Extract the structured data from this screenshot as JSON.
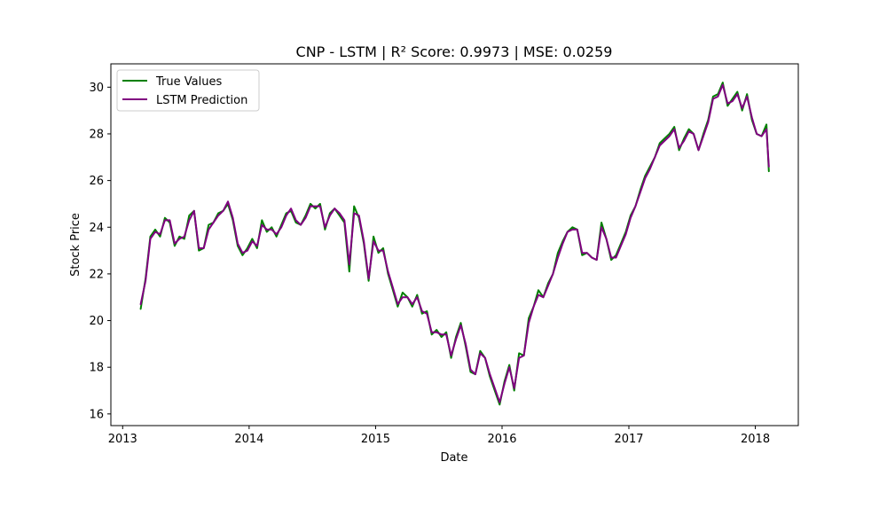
{
  "chart_data": {
    "type": "line",
    "title": "CNP - LSTM | R² Score: 0.9973 | MSE: 0.0259",
    "xlabel": "Date",
    "ylabel": "Stock Price",
    "xlim": [
      "2012-11-28",
      "2018-05-05"
    ],
    "ylim": [
      15.5,
      31.0
    ],
    "x_ticks": [
      "2013-01-01",
      "2014-01-01",
      "2015-01-01",
      "2016-01-01",
      "2017-01-01",
      "2018-01-01"
    ],
    "x_tick_labels": [
      "2013",
      "2014",
      "2015",
      "2016",
      "2017",
      "2018"
    ],
    "y_ticks": [
      16,
      18,
      20,
      22,
      24,
      26,
      28,
      30
    ],
    "y_tick_labels": [
      "16",
      "18",
      "20",
      "22",
      "24",
      "26",
      "28",
      "30"
    ],
    "grid": false,
    "legend_position": "upper-left",
    "x": [
      "2013-02-22",
      "2013-03-08",
      "2013-03-22",
      "2013-04-05",
      "2013-04-19",
      "2013-05-03",
      "2013-05-17",
      "2013-05-31",
      "2013-06-14",
      "2013-06-28",
      "2013-07-12",
      "2013-07-26",
      "2013-08-09",
      "2013-08-23",
      "2013-09-06",
      "2013-09-20",
      "2013-10-04",
      "2013-10-18",
      "2013-11-01",
      "2013-11-15",
      "2013-11-29",
      "2013-12-13",
      "2013-12-27",
      "2014-01-10",
      "2014-01-24",
      "2014-02-07",
      "2014-02-21",
      "2014-03-07",
      "2014-03-21",
      "2014-04-04",
      "2014-04-18",
      "2014-05-02",
      "2014-05-16",
      "2014-05-30",
      "2014-06-13",
      "2014-06-27",
      "2014-07-11",
      "2014-07-25",
      "2014-08-08",
      "2014-08-22",
      "2014-09-05",
      "2014-09-19",
      "2014-10-03",
      "2014-10-17",
      "2014-10-31",
      "2014-11-14",
      "2014-11-28",
      "2014-12-12",
      "2014-12-26",
      "2015-01-09",
      "2015-01-23",
      "2015-02-06",
      "2015-02-20",
      "2015-03-06",
      "2015-03-20",
      "2015-04-03",
      "2015-04-17",
      "2015-05-01",
      "2015-05-15",
      "2015-05-29",
      "2015-06-12",
      "2015-06-26",
      "2015-07-10",
      "2015-07-24",
      "2015-08-07",
      "2015-08-21",
      "2015-09-04",
      "2015-09-18",
      "2015-10-02",
      "2015-10-16",
      "2015-10-30",
      "2015-11-13",
      "2015-11-27",
      "2015-12-11",
      "2015-12-25",
      "2016-01-08",
      "2016-01-22",
      "2016-02-05",
      "2016-02-19",
      "2016-03-04",
      "2016-03-18",
      "2016-04-01",
      "2016-04-15",
      "2016-04-29",
      "2016-05-13",
      "2016-05-27",
      "2016-06-10",
      "2016-06-24",
      "2016-07-08",
      "2016-07-22",
      "2016-08-05",
      "2016-08-19",
      "2016-09-02",
      "2016-09-16",
      "2016-09-30",
      "2016-10-14",
      "2016-10-28",
      "2016-11-11",
      "2016-11-25",
      "2016-12-09",
      "2016-12-23",
      "2017-01-06",
      "2017-01-20",
      "2017-02-03",
      "2017-02-17",
      "2017-03-03",
      "2017-03-17",
      "2017-03-31",
      "2017-04-14",
      "2017-04-28",
      "2017-05-12",
      "2017-05-26",
      "2017-06-09",
      "2017-06-23",
      "2017-07-07",
      "2017-07-21",
      "2017-08-04",
      "2017-08-18",
      "2017-09-01",
      "2017-09-15",
      "2017-09-29",
      "2017-10-13",
      "2017-10-27",
      "2017-11-10",
      "2017-11-24",
      "2017-12-08",
      "2017-12-22",
      "2018-01-05",
      "2018-01-19",
      "2018-02-02",
      "2018-02-09"
    ],
    "series": [
      {
        "name": "True Values",
        "color": "#008000",
        "values": [
          20.5,
          21.8,
          23.6,
          23.9,
          23.6,
          24.4,
          24.2,
          23.2,
          23.6,
          23.5,
          24.5,
          24.7,
          23.0,
          23.1,
          24.1,
          24.2,
          24.6,
          24.7,
          25.0,
          24.3,
          23.2,
          22.8,
          23.1,
          23.5,
          23.1,
          24.3,
          23.8,
          24.0,
          23.6,
          24.1,
          24.6,
          24.7,
          24.2,
          24.1,
          24.5,
          25.0,
          24.8,
          25.0,
          23.9,
          24.6,
          24.8,
          24.5,
          24.2,
          22.1,
          24.9,
          24.4,
          23.3,
          21.7,
          23.6,
          22.9,
          23.1,
          22.0,
          21.3,
          20.6,
          21.2,
          21.0,
          20.6,
          21.1,
          20.3,
          20.4,
          19.4,
          19.6,
          19.3,
          19.5,
          18.4,
          19.3,
          19.9,
          18.9,
          17.8,
          17.7,
          18.7,
          18.4,
          17.6,
          17.0,
          16.4,
          17.4,
          18.1,
          17.0,
          18.6,
          18.5,
          20.1,
          20.6,
          21.3,
          21.0,
          21.6,
          22.0,
          22.9,
          23.4,
          23.8,
          24.0,
          23.9,
          22.8,
          22.9,
          22.7,
          22.6,
          24.2,
          23.5,
          22.6,
          22.8,
          23.3,
          23.8,
          24.5,
          24.9,
          25.6,
          26.2,
          26.6,
          27.0,
          27.6,
          27.8,
          28.0,
          28.3,
          27.3,
          27.8,
          28.2,
          28.0,
          27.3,
          28.0,
          28.6,
          29.6,
          29.7,
          30.2,
          29.2,
          29.5,
          29.8,
          29.0,
          29.7,
          28.6,
          28.0,
          27.9,
          28.4,
          26.4
        ]
      },
      {
        "name": "LSTM Prediction",
        "color": "#800080",
        "values": [
          20.7,
          21.7,
          23.5,
          23.8,
          23.7,
          24.3,
          24.3,
          23.3,
          23.5,
          23.6,
          24.3,
          24.7,
          23.1,
          23.1,
          23.9,
          24.2,
          24.5,
          24.7,
          25.1,
          24.4,
          23.3,
          22.9,
          23.0,
          23.4,
          23.2,
          24.1,
          23.9,
          23.9,
          23.7,
          24.0,
          24.5,
          24.8,
          24.3,
          24.1,
          24.4,
          24.9,
          24.9,
          24.9,
          24.0,
          24.5,
          24.8,
          24.6,
          24.3,
          22.4,
          24.6,
          24.5,
          23.4,
          21.8,
          23.4,
          23.0,
          23.0,
          22.1,
          21.4,
          20.7,
          21.0,
          21.0,
          20.7,
          21.0,
          20.4,
          20.3,
          19.5,
          19.5,
          19.4,
          19.4,
          18.5,
          19.2,
          19.8,
          19.0,
          17.9,
          17.7,
          18.6,
          18.4,
          17.7,
          17.1,
          16.5,
          17.3,
          18.0,
          17.1,
          18.4,
          18.5,
          19.9,
          20.6,
          21.1,
          21.0,
          21.5,
          22.0,
          22.7,
          23.3,
          23.8,
          23.9,
          23.9,
          22.9,
          22.9,
          22.7,
          22.6,
          24.0,
          23.5,
          22.7,
          22.7,
          23.2,
          23.7,
          24.4,
          24.9,
          25.5,
          26.1,
          26.5,
          27.0,
          27.5,
          27.7,
          27.9,
          28.2,
          27.4,
          27.7,
          28.1,
          28.0,
          27.3,
          27.9,
          28.5,
          29.5,
          29.6,
          30.1,
          29.3,
          29.4,
          29.7,
          29.1,
          29.6,
          28.7,
          28.0,
          27.9,
          28.2,
          26.6
        ]
      }
    ]
  }
}
